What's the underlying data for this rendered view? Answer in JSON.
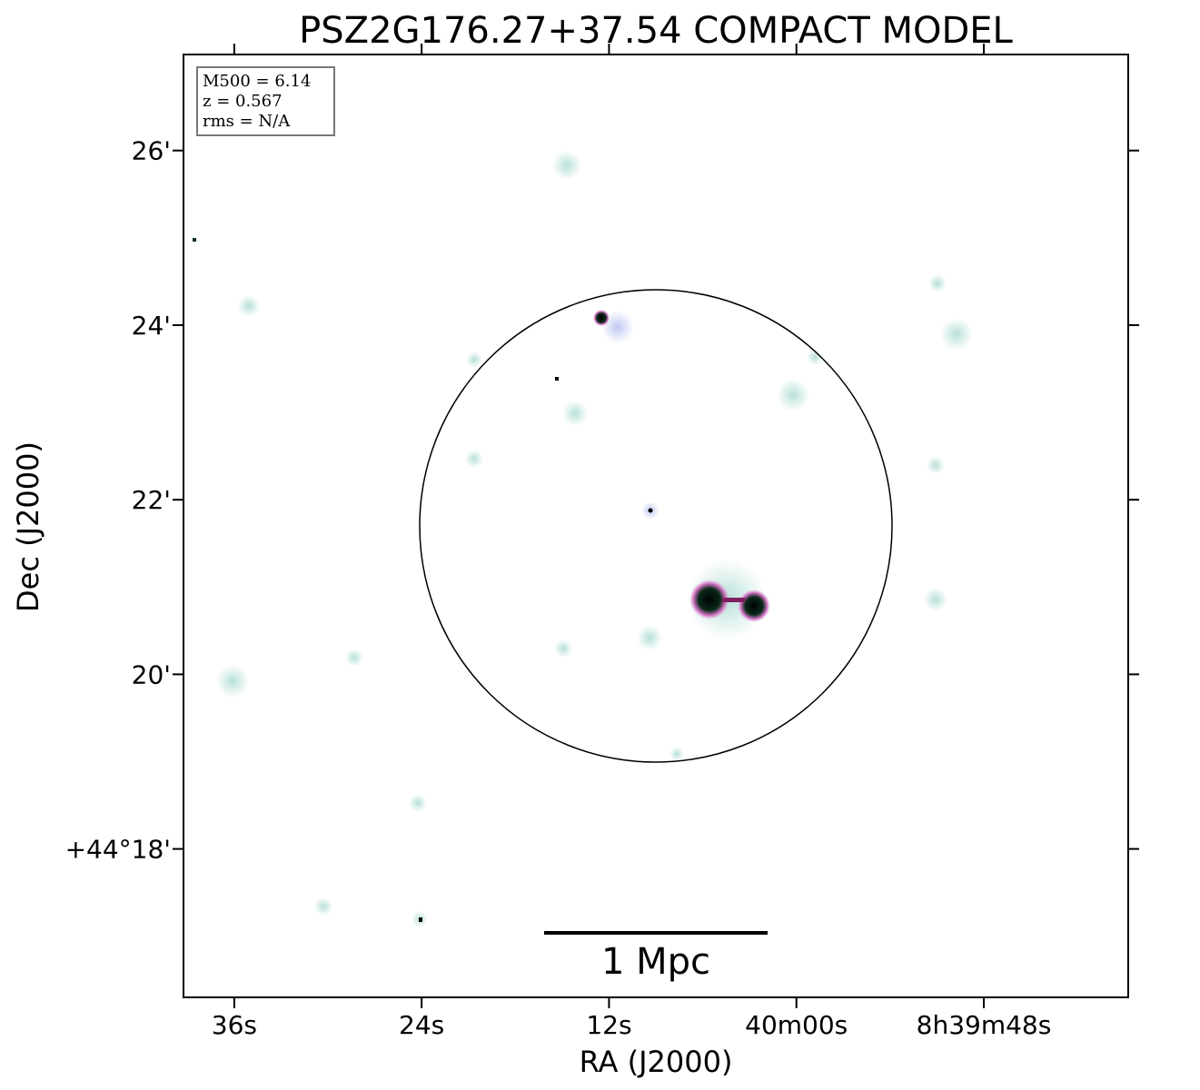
{
  "chart_data": {
    "type": "image",
    "title": "PSZ2G176.27+37.54 COMPACT MODEL",
    "x_label": "RA (J2000)",
    "y_label": "Dec (J2000)",
    "annotations": [
      "M500 = 6.14",
      "z = 0.567",
      "rms = N/A"
    ],
    "scale_bar_label": "1 Mpc",
    "xlim": [
      39.25,
      -21.25
    ],
    "xticks": [
      {
        "value": 36,
        "label": "36s"
      },
      {
        "value": 24,
        "label": "24s"
      },
      {
        "value": 12,
        "label": "12s"
      },
      {
        "value": 0,
        "label": "40m00s"
      },
      {
        "value": -12,
        "label": "8h39m48s"
      }
    ],
    "ylim": [
      16.3,
      27.1
    ],
    "yticks": [
      {
        "value": 26,
        "label": "26'"
      },
      {
        "value": 24,
        "label": "24'"
      },
      {
        "value": 22,
        "label": "22'"
      },
      {
        "value": 20,
        "label": "20'"
      },
      {
        "value": 18,
        "label": "+44°18'"
      }
    ]
  }
}
